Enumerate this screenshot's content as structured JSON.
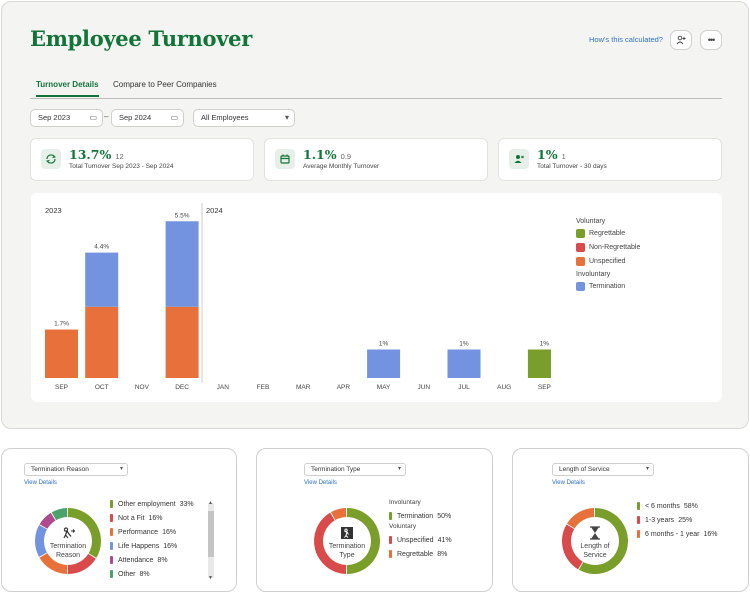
{
  "header": {
    "title": "Employee Turnover",
    "help_link": "How's this calculated?",
    "add_user_icon": "add-person-icon",
    "more_icon": "more-horizontal-icon"
  },
  "tabs": [
    {
      "label": "Turnover Details",
      "active": true
    },
    {
      "label": "Compare to Peer Companies",
      "active": false
    }
  ],
  "filters": {
    "start_date": "Sep 2023",
    "end_date": "Sep 2024",
    "separator": "–",
    "employees": "All Employees"
  },
  "cards": [
    {
      "value": "13.7%",
      "count": "12",
      "label": "Total Turnover Sep 2023 - Sep 2024",
      "icon": "refresh-icon"
    },
    {
      "value": "1.1%",
      "count": "0.9",
      "label": "Average Monthly Turnover",
      "icon": "calendar-icon"
    },
    {
      "value": "1%",
      "count": "1",
      "label": "Total Turnover - 30 days",
      "icon": "people-icon"
    }
  ],
  "colors": {
    "brand": "#13743a",
    "regrettable": "#7a9e2a",
    "non_regrettable": "#d94a4a",
    "unspecified": "#e8703a",
    "termination": "#7393e0"
  },
  "chart_data": {
    "type": "bar",
    "stacked": true,
    "year_labels": [
      "2023",
      "2024"
    ],
    "categories": [
      "SEP",
      "OCT",
      "NOV",
      "DEC",
      "JAN",
      "FEB",
      "MAR",
      "APR",
      "MAY",
      "JUN",
      "JUL",
      "AUG",
      "SEP"
    ],
    "totals": [
      "1.7%",
      "4.4%",
      "",
      "5.5%",
      "",
      "",
      "",
      "",
      "1%",
      "",
      "1%",
      "",
      "1%"
    ],
    "series": [
      {
        "name": "Regrettable",
        "color": "#7a9e2a",
        "values": [
          0,
          0,
          0,
          0,
          0,
          0,
          0,
          0,
          0,
          0,
          0,
          0,
          1.0
        ]
      },
      {
        "name": "Non-Regrettable",
        "color": "#d94a4a",
        "values": [
          0,
          0,
          0,
          0,
          0,
          0,
          0,
          0,
          0,
          0,
          0,
          0,
          0
        ]
      },
      {
        "name": "Unspecified",
        "color": "#e8703a",
        "values": [
          1.7,
          2.5,
          0,
          2.5,
          0,
          0,
          0,
          0,
          0,
          0,
          0,
          0,
          0
        ]
      },
      {
        "name": "Termination",
        "color": "#7393e0",
        "values": [
          0,
          1.9,
          0,
          3.0,
          0,
          0,
          0,
          0,
          1.0,
          0,
          1.0,
          0,
          0
        ]
      }
    ],
    "legend": {
      "placement": "right",
      "groups": [
        {
          "title": "Voluntary",
          "items": [
            {
              "label": "Regrettable",
              "color": "#7a9e2a"
            },
            {
              "label": "Non-Regrettable",
              "color": "#d94a4a"
            },
            {
              "label": "Unspecified",
              "color": "#e8703a"
            }
          ]
        },
        {
          "title": "Involuntary",
          "items": [
            {
              "label": "Termination",
              "color": "#7393e0"
            }
          ]
        }
      ]
    }
  },
  "breakdowns": [
    {
      "select": "Termination Reason",
      "view_details": "View Details",
      "center_label": [
        "Termination",
        "Reason"
      ],
      "center_icon": "person-exit-icon",
      "items": [
        {
          "label": "Other employment",
          "pct": "33%",
          "value": 33,
          "color": "#7a9e2a"
        },
        {
          "label": "Not a Fit",
          "pct": "16%",
          "value": 16,
          "color": "#d94a4a"
        },
        {
          "label": "Performance",
          "pct": "16%",
          "value": 16,
          "color": "#e8703a"
        },
        {
          "label": "Life Happens",
          "pct": "16%",
          "value": 16,
          "color": "#7393e0"
        },
        {
          "label": "Attendance",
          "pct": "8%",
          "value": 8,
          "color": "#b04a8e"
        },
        {
          "label": "Other",
          "pct": "8%",
          "value": 8,
          "color": "#4aa36a"
        }
      ]
    },
    {
      "select": "Termination Type",
      "view_details": "View Details",
      "center_label": [
        "Termination",
        "Type"
      ],
      "center_icon": "door-exit-icon",
      "groups": [
        {
          "title": "Involuntary",
          "items": [
            {
              "label": "Termination",
              "pct": "50%",
              "value": 50,
              "color": "#7a9e2a"
            }
          ]
        },
        {
          "title": "Voluntary",
          "items": [
            {
              "label": "Unspecified",
              "pct": "41%",
              "value": 41,
              "color": "#d94a4a"
            },
            {
              "label": "Regrettable",
              "pct": "8%",
              "value": 8,
              "color": "#e8703a"
            }
          ]
        }
      ]
    },
    {
      "select": "Length of Service",
      "view_details": "View Details",
      "center_label": [
        "Length of",
        "Service"
      ],
      "center_icon": "hourglass-icon",
      "items": [
        {
          "label": "< 6 months",
          "pct": "58%",
          "value": 58,
          "color": "#7a9e2a"
        },
        {
          "label": "1-3 years",
          "pct": "25%",
          "value": 25,
          "color": "#d94a4a"
        },
        {
          "label": "6 months - 1 year",
          "pct": "16%",
          "value": 16,
          "color": "#e8703a"
        }
      ]
    }
  ]
}
